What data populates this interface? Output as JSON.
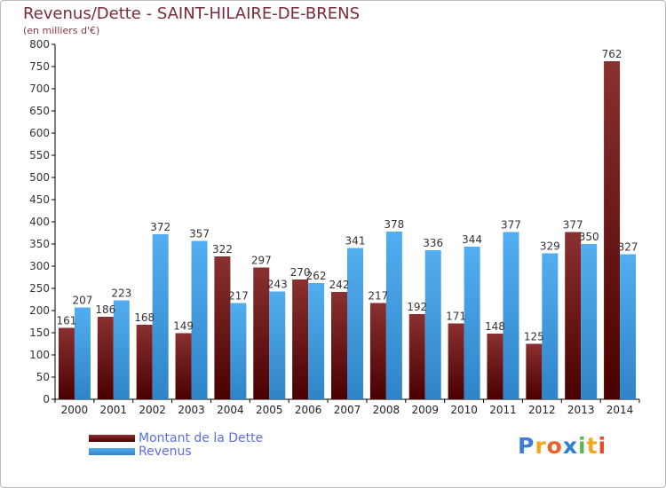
{
  "header": {
    "title": "Revenus/Dette - SAINT-HILAIRE-DE-BRENS",
    "subtitle": "(en milliers d'€)"
  },
  "legend": {
    "items": [
      {
        "label": "Montant de la Dette",
        "color": "#6b0f14"
      },
      {
        "label": "Revenus",
        "color": "#3d9ee4"
      }
    ]
  },
  "logo": {
    "text": "Proxiti",
    "letters": [
      "P",
      "r",
      "o",
      "x",
      "i",
      "t",
      "i"
    ],
    "colors": [
      "#3d7fd6",
      "#f2a81e",
      "#e8622a",
      "#2b7fd0",
      "#5cb84a",
      "#f2a81e",
      "#e84a2a"
    ]
  },
  "chart_data": {
    "type": "bar",
    "title": "Revenus/Dette - SAINT-HILAIRE-DE-BRENS",
    "subtitle": "(en milliers d'€)",
    "xlabel": "",
    "ylabel": "",
    "ylim": [
      0,
      800
    ],
    "ytick_step": 50,
    "grid": false,
    "categories": [
      "2000",
      "2001",
      "2002",
      "2003",
      "2004",
      "2005",
      "2006",
      "2007",
      "2008",
      "2009",
      "2010",
      "2011",
      "2012",
      "2013",
      "2014"
    ],
    "series": [
      {
        "name": "Montant de la Dette",
        "color": "#6b0f14",
        "values": [
          161,
          186,
          168,
          149,
          322,
          297,
          270,
          242,
          217,
          192,
          171,
          148,
          125,
          377,
          762
        ]
      },
      {
        "name": "Revenus",
        "color": "#3d9ee4",
        "values": [
          207,
          223,
          372,
          357,
          217,
          243,
          262,
          341,
          378,
          336,
          344,
          377,
          329,
          350,
          327
        ]
      }
    ]
  }
}
